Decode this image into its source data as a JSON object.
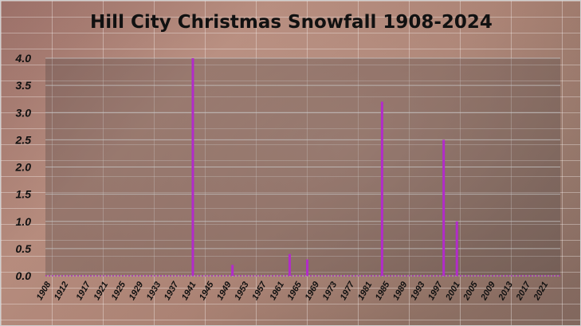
{
  "chart_data": {
    "type": "bar",
    "title": "Hill City Christmas Snowfall 1908-2024",
    "xlabel": "",
    "ylabel": "",
    "ylim": [
      0,
      4.0
    ],
    "yticks": [
      "0.0",
      "0.5",
      "1.0",
      "1.5",
      "2.0",
      "2.5",
      "3.0",
      "3.5",
      "4.0"
    ],
    "x_range": [
      1908,
      2024
    ],
    "xticks": [
      "1908",
      "1912",
      "1917",
      "1921",
      "1925",
      "1929",
      "1933",
      "1937",
      "1941",
      "1945",
      "1949",
      "1953",
      "1957",
      "1961",
      "1965",
      "1969",
      "1973",
      "1977",
      "1981",
      "1985",
      "1989",
      "1993",
      "1997",
      "2001",
      "2005",
      "2009",
      "2013",
      "2017",
      "2021"
    ],
    "grid": true,
    "legend": "none",
    "bar_color": "#b12cc9",
    "nonzero_points": [
      {
        "x": 1941,
        "y": 4.0
      },
      {
        "x": 1950,
        "y": 0.2
      },
      {
        "x": 1963,
        "y": 0.4
      },
      {
        "x": 1967,
        "y": 0.3
      },
      {
        "x": 1984,
        "y": 3.2
      },
      {
        "x": 1998,
        "y": 2.5
      },
      {
        "x": 2001,
        "y": 1.0
      }
    ]
  }
}
